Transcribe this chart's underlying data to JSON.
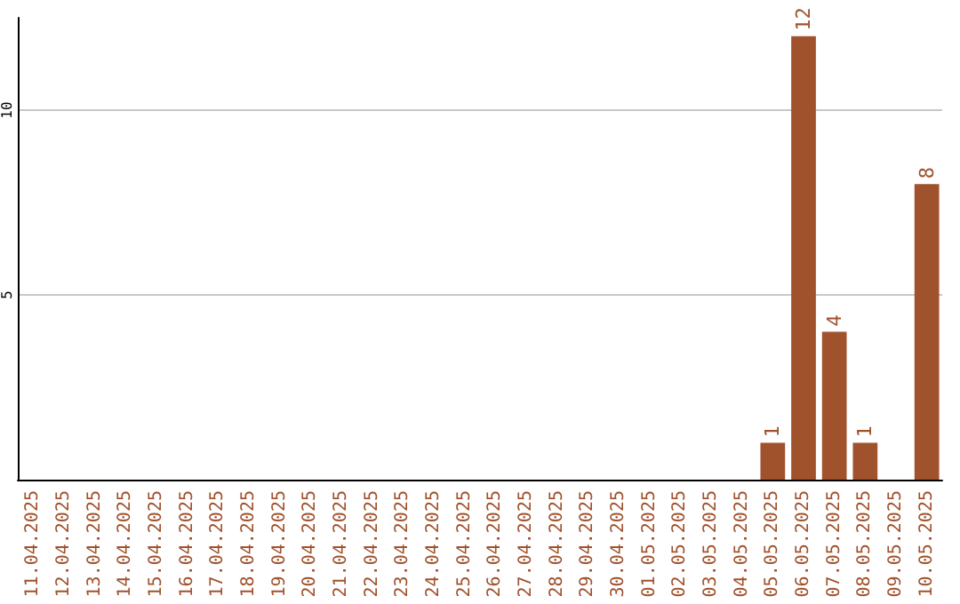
{
  "chart_data": {
    "type": "bar",
    "categories": [
      "11.04.2025",
      "12.04.2025",
      "13.04.2025",
      "14.04.2025",
      "15.04.2025",
      "16.04.2025",
      "17.04.2025",
      "18.04.2025",
      "19.04.2025",
      "20.04.2025",
      "21.04.2025",
      "22.04.2025",
      "23.04.2025",
      "24.04.2025",
      "25.04.2025",
      "26.04.2025",
      "27.04.2025",
      "28.04.2025",
      "29.04.2025",
      "30.04.2025",
      "01.05.2025",
      "02.05.2025",
      "03.05.2025",
      "04.05.2025",
      "05.05.2025",
      "06.05.2025",
      "07.05.2025",
      "08.05.2025",
      "09.05.2025",
      "10.05.2025"
    ],
    "values": [
      0,
      0,
      0,
      0,
      0,
      0,
      0,
      0,
      0,
      0,
      0,
      0,
      0,
      0,
      0,
      0,
      0,
      0,
      0,
      0,
      0,
      0,
      0,
      0,
      1,
      12,
      4,
      1,
      0,
      8
    ],
    "value_labels": [
      null,
      null,
      null,
      null,
      null,
      null,
      null,
      null,
      null,
      null,
      null,
      null,
      null,
      null,
      null,
      null,
      null,
      null,
      null,
      null,
      null,
      null,
      null,
      null,
      "1",
      "12",
      "4",
      "1",
      null,
      "8"
    ],
    "color": "#a0522d",
    "ylim": [
      0,
      12.5
    ],
    "yticks": [
      5,
      10
    ],
    "grid": "y"
  }
}
